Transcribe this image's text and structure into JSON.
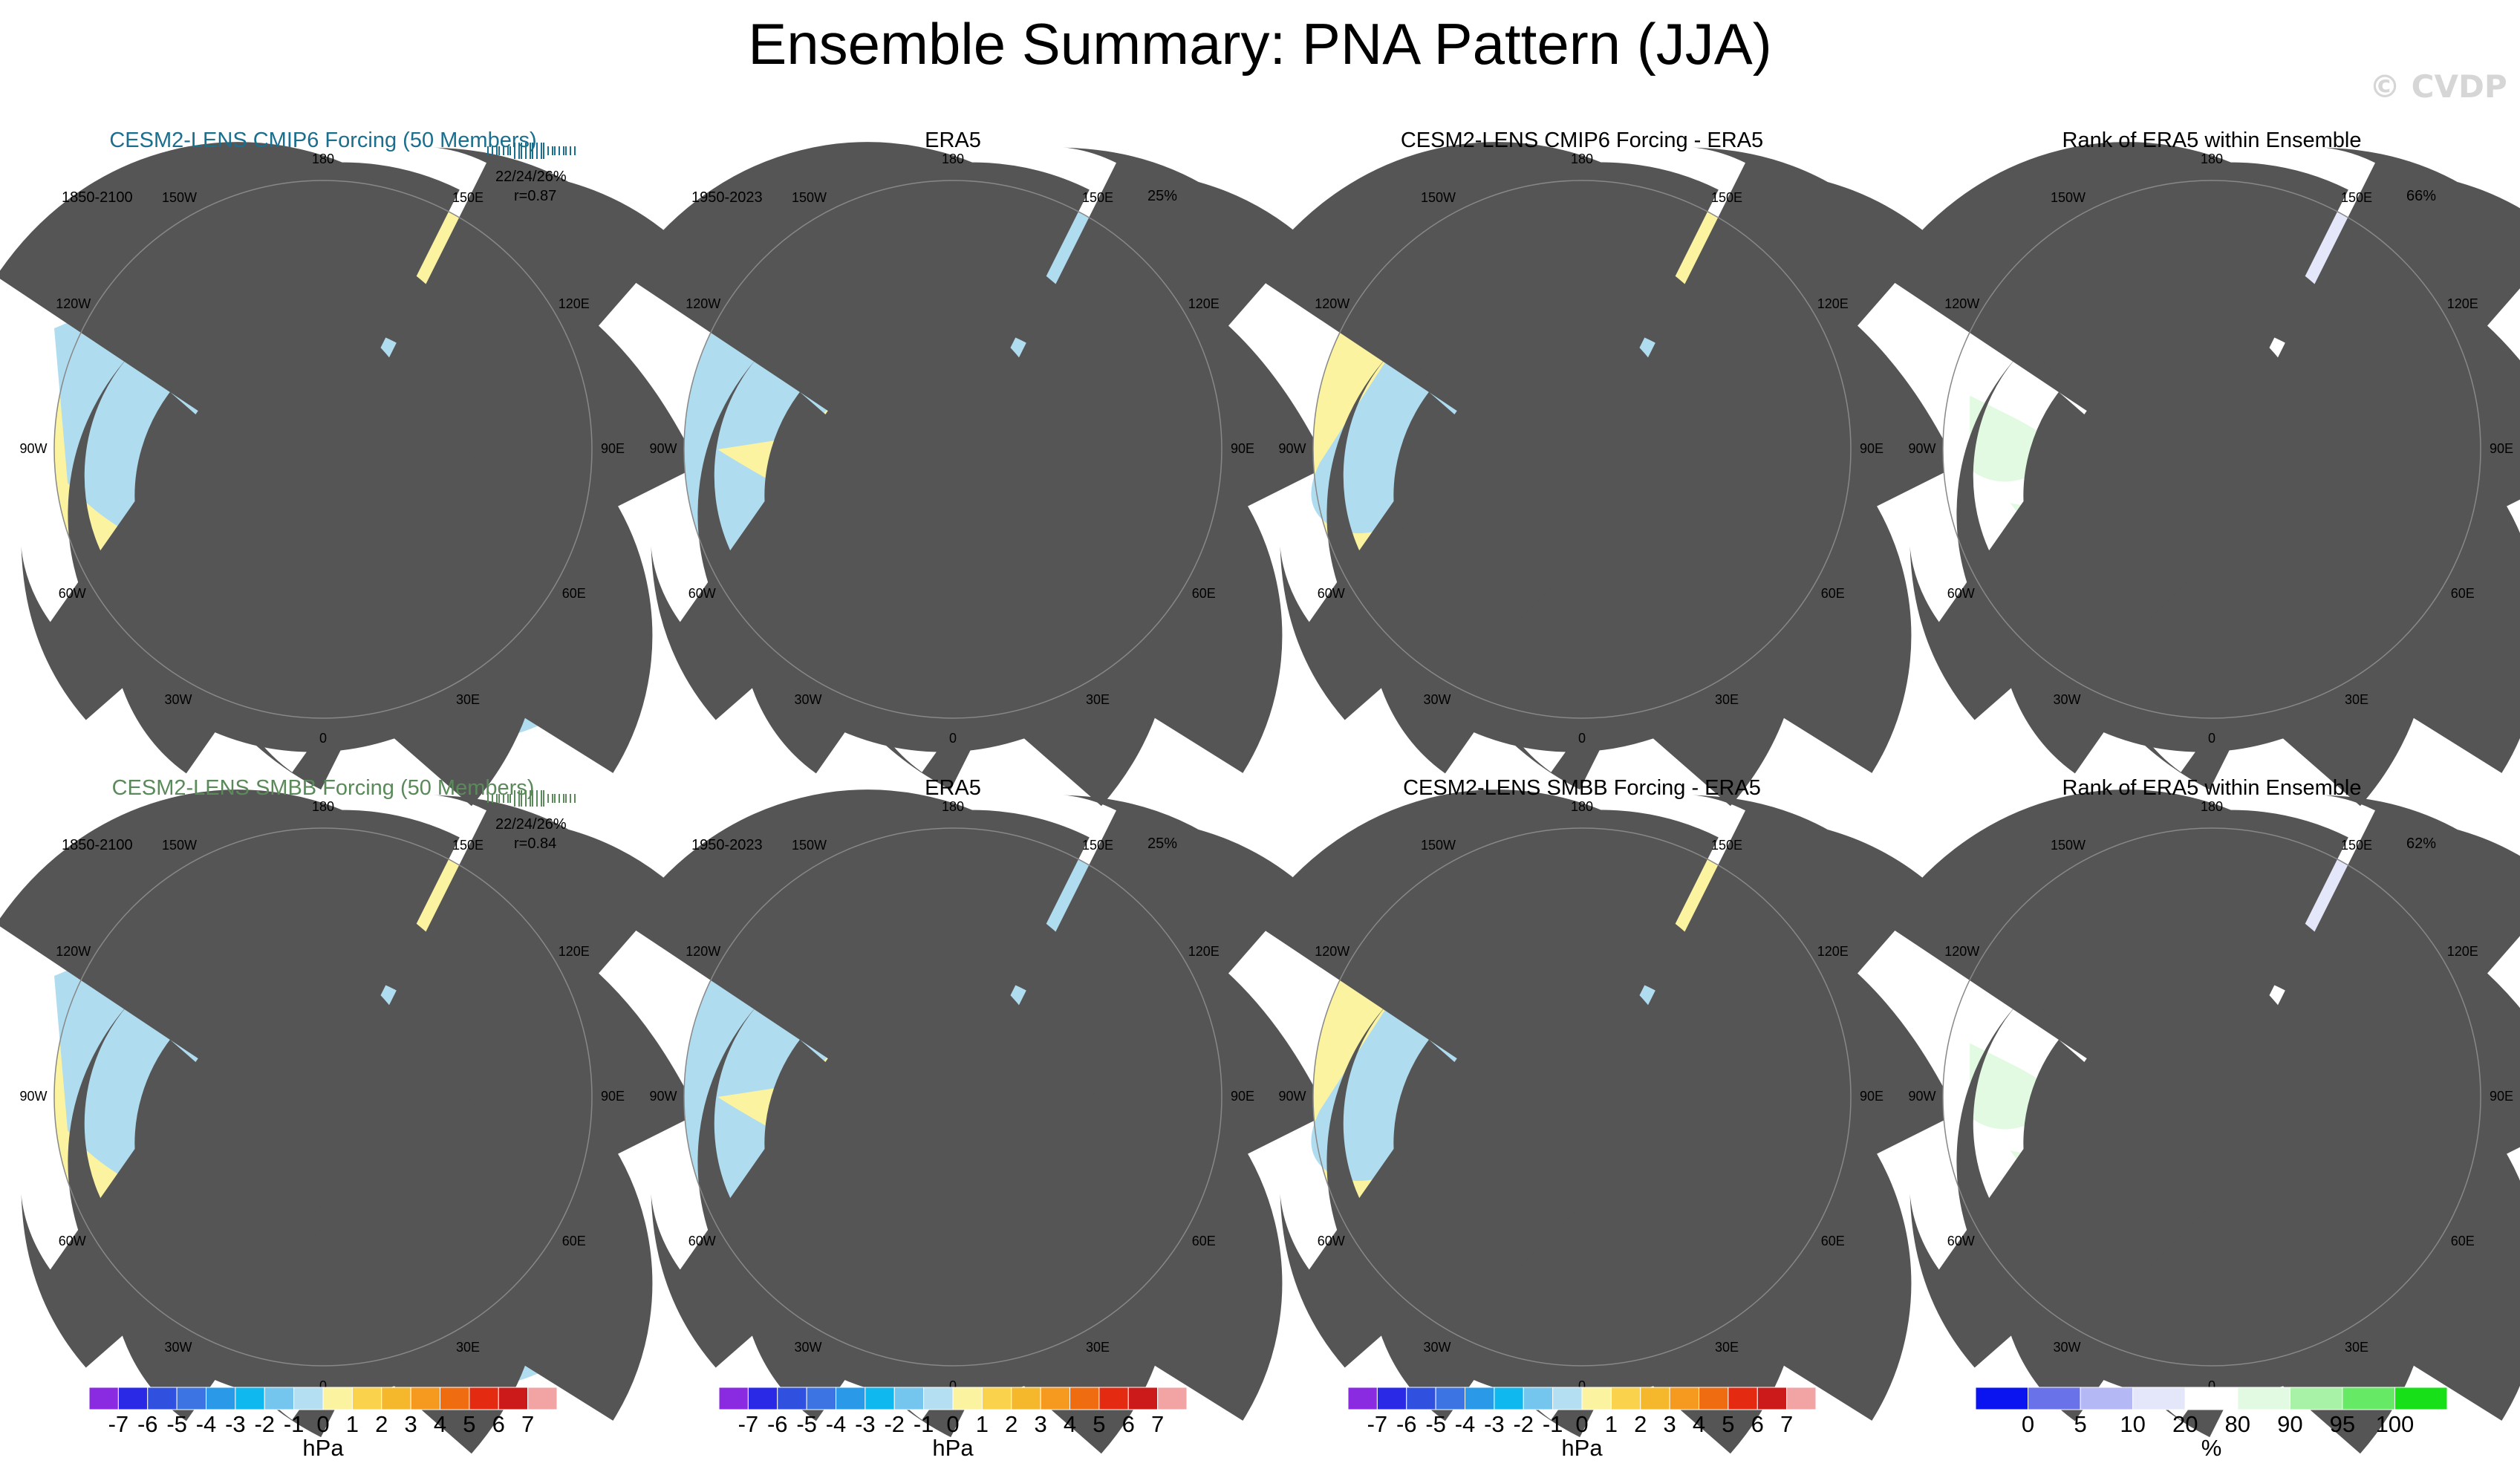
{
  "title": "Ensemble Summary: PNA Pattern (JJA)",
  "watermark": "© CVDP",
  "colors": {
    "neg1": "#b0dcf0",
    "neg2": "#6cb8e8",
    "pos1": "#fbf3a0",
    "pos2": "#fbd24c",
    "pos3": "#f5a623",
    "pos4": "#ef7a10",
    "rank_blue_dark": "#0a14f0",
    "rank_blue_mid": "#6a72ea",
    "rank_blue_light": "#b4b8f4",
    "rank_blue_pale": "#e4e6fa",
    "rank_green_pale": "#e2fae2",
    "rank_green_light": "#a8f2a8",
    "rank_green_mid": "#66ea66",
    "rank_green_dark": "#18e018",
    "title_row1": "#1a6e8e",
    "title_row2": "#5a8a5a"
  },
  "longitude_labels": {
    "l180": "180",
    "l150w": "150W",
    "l150e": "150E",
    "l120w": "120W",
    "l120e": "120E",
    "l90w": "90W",
    "l90e": "90E",
    "l60w": "60W",
    "l60e": "60E",
    "l30w": "30W",
    "l30e": "30E",
    "l0": "0"
  },
  "rows": [
    {
      "model_title": "CESM2-LENS CMIP6 Forcing (50 Members)",
      "model_period": "1850-2100",
      "model_stats": "22/24/26%",
      "model_corr": "r=0.87",
      "obs_title": "ERA5",
      "obs_period": "1950-2023",
      "obs_pct": "25%",
      "diff_title": "CESM2-LENS CMIP6 Forcing - ERA5",
      "rank_title": "Rank of ERA5 within Ensemble",
      "rank_pct": "66%"
    },
    {
      "model_title": "CESM2-LENS SMBB Forcing (50 Members)",
      "model_period": "1850-2100",
      "model_stats": "22/24/26%",
      "model_corr": "r=0.84",
      "obs_title": "ERA5",
      "obs_period": "1950-2023",
      "obs_pct": "25%",
      "diff_title": "CESM2-LENS SMBB Forcing - ERA5",
      "rank_title": "Rank of ERA5 within Ensemble",
      "rank_pct": "62%"
    }
  ],
  "chart_data": [
    {
      "type": "heatmap",
      "name": "hPa colorbar (3 panels)",
      "unit": "hPa",
      "tick_labels": [
        "-7",
        "-6",
        "-5",
        "-4",
        "-3",
        "-2",
        "-1",
        "0",
        "1",
        "2",
        "3",
        "4",
        "5",
        "6",
        "7"
      ],
      "levels": [
        -7,
        -6,
        -5,
        -4,
        -3,
        -2,
        -1,
        0,
        1,
        2,
        3,
        4,
        5,
        6,
        7
      ],
      "colors": [
        "#8a2be2",
        "#2a2ae6",
        "#3050e0",
        "#3c74e4",
        "#2a9ae8",
        "#10b8f0",
        "#74c6ee",
        "#b4def2",
        "#fbf3a0",
        "#fbd24c",
        "#f5b72c",
        "#f59a1e",
        "#ef6c10",
        "#e42a10",
        "#cc1a1a",
        "#f2a4a4"
      ]
    },
    {
      "type": "heatmap",
      "name": "rank colorbar",
      "unit": "%",
      "tick_labels": [
        "0",
        "5",
        "10",
        "20",
        "80",
        "90",
        "95",
        "100"
      ],
      "levels": [
        0,
        5,
        10,
        20,
        80,
        90,
        95,
        100
      ],
      "colors": [
        "#0a14f0",
        "#6a72ea",
        "#b4b8f4",
        "#e4e6fa",
        "#ffffff",
        "#e2fae2",
        "#a8f2a8",
        "#66ea66",
        "#18e018"
      ]
    }
  ]
}
